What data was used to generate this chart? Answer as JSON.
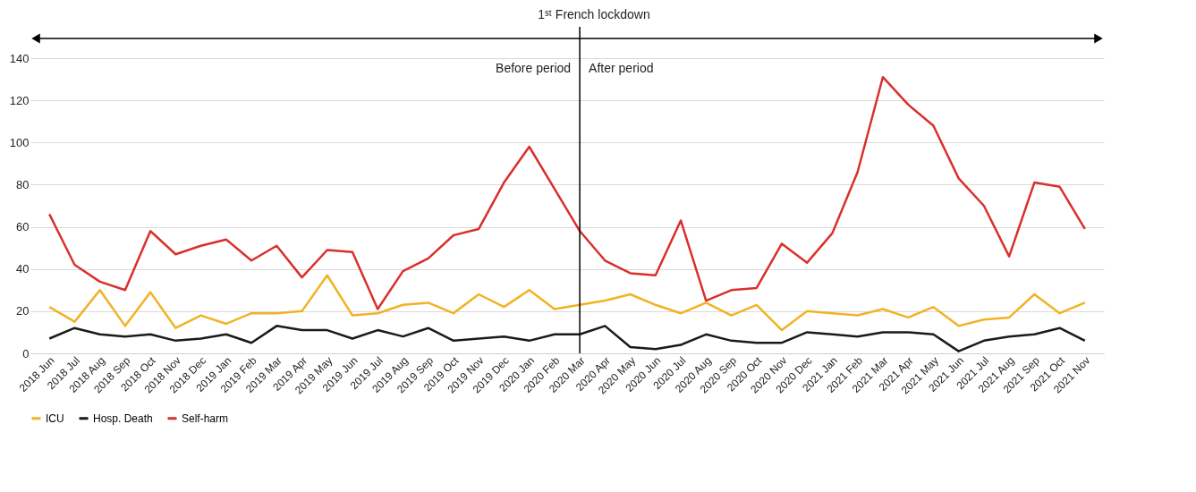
{
  "chart_data": {
    "type": "line",
    "categories": [
      "2018 Jun",
      "2018 Jul",
      "2018 Aug",
      "2018 Sep",
      "2018 Oct",
      "2018 Nov",
      "2018 Dec",
      "2019 Jan",
      "2019 Feb",
      "2019 Mar",
      "2019 Apr",
      "2019 May",
      "2019 Jun",
      "2019 Jul",
      "2019 Aug",
      "2019 Sep",
      "2019 Oct",
      "2019 Nov",
      "2019 Dec",
      "2020 Jan",
      "2020 Feb",
      "2020 Mar",
      "2020 Apr",
      "2020 May",
      "2020 Jun",
      "2020 Jul",
      "2020 Aug",
      "2020 Sep",
      "2020 Oct",
      "2020 Nov",
      "2020 Dec",
      "2021 Jan",
      "2021 Feb",
      "2021 Mar",
      "2021 Apr",
      "2021 May",
      "2021 Jun",
      "2021 Jul",
      "2021 Aug",
      "2021 Sep",
      "2021 Oct",
      "2021 Nov"
    ],
    "series": [
      {
        "name": "ICU",
        "color": "#f0b323",
        "values": [
          22,
          15,
          30,
          13,
          29,
          12,
          18,
          14,
          19,
          19,
          20,
          37,
          18,
          19,
          23,
          24,
          19,
          28,
          22,
          30,
          21,
          23,
          25,
          28,
          23,
          19,
          24,
          18,
          23,
          11,
          20,
          19,
          18,
          21,
          17,
          22,
          13,
          16,
          17,
          28,
          19,
          24
        ]
      },
      {
        "name": "Hosp. Death",
        "color": "#1a1a1a",
        "values": [
          7,
          12,
          9,
          8,
          9,
          6,
          7,
          9,
          5,
          13,
          11,
          11,
          7,
          11,
          8,
          12,
          6,
          7,
          8,
          6,
          9,
          9,
          13,
          3,
          2,
          4,
          9,
          6,
          5,
          5,
          10,
          9,
          8,
          10,
          10,
          9,
          1,
          6,
          8,
          9,
          12,
          6
        ]
      },
      {
        "name": "Self-harm",
        "color": "#d9302c",
        "values": [
          66,
          42,
          34,
          30,
          58,
          47,
          51,
          54,
          44,
          51,
          36,
          49,
          48,
          21,
          39,
          45,
          56,
          59,
          81,
          98,
          78,
          58,
          44,
          38,
          37,
          63,
          25,
          30,
          31,
          52,
          43,
          57,
          86,
          131,
          118,
          108,
          83,
          70,
          46,
          81,
          79,
          59
        ]
      }
    ],
    "ylim": [
      0,
      140
    ],
    "yticks": [
      0,
      20,
      40,
      60,
      80,
      100,
      120,
      140
    ],
    "grid": "y",
    "legend": "bottom",
    "ref_lines": [
      {
        "axis": "x",
        "value": "2020 Mar",
        "color": "#000000"
      }
    ],
    "annotations": [
      "1ˢᵗ French lockdown",
      "Before period",
      "After period"
    ]
  }
}
